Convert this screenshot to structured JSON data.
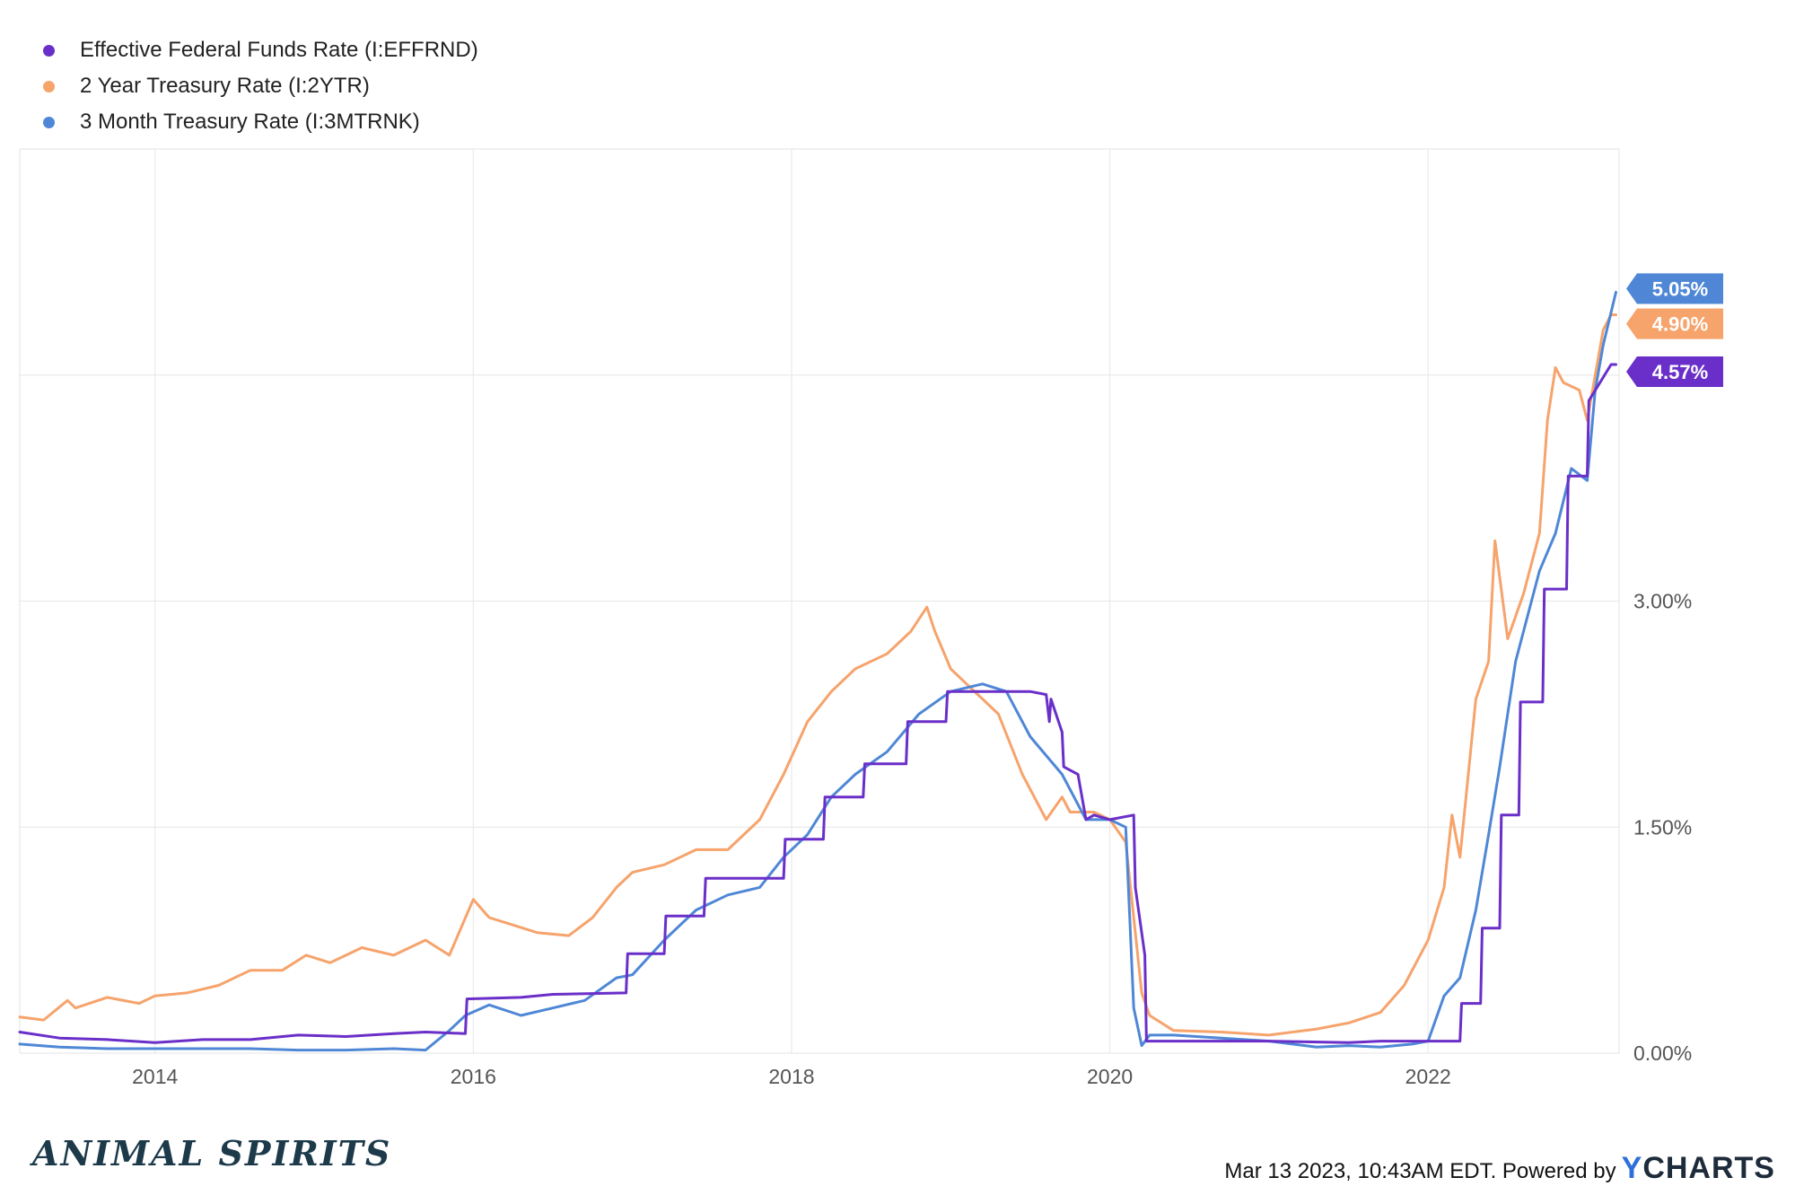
{
  "legend": [
    {
      "label": "Effective Federal Funds Rate (I:EFFRND)",
      "color": "#6a2fc8"
    },
    {
      "label": "2 Year Treasury Rate (I:2YTR)",
      "color": "#f6a36c"
    },
    {
      "label": "3 Month Treasury Rate (I:3MTRNK)",
      "color": "#4f87d6"
    }
  ],
  "footer": {
    "brand": "ANIMAL SPIRITS",
    "timestamp": "Mar 13 2023, 10:43AM EDT. Powered by",
    "logo_y": "Y",
    "logo_rest": "CHARTS"
  },
  "chart_data": {
    "type": "line",
    "x_ticks": [
      "2014",
      "2016",
      "2018",
      "2020",
      "2022"
    ],
    "y_ticks": [
      "0.00%",
      "1.50%",
      "3.00%"
    ],
    "y_tick_values": [
      0,
      1.5,
      3.0
    ],
    "xlim": [
      2013.15,
      2023.2
    ],
    "ylim": [
      0,
      6.0
    ],
    "grid": true,
    "legend_position": "top-left",
    "end_labels": [
      {
        "series": "3 Month Treasury Rate (I:3MTRNK)",
        "text": "5.05%",
        "value": 5.05,
        "color": "#4f87d6"
      },
      {
        "series": "2 Year Treasury Rate (I:2YTR)",
        "text": "4.90%",
        "value": 4.9,
        "color": "#f6a36c"
      },
      {
        "series": "Effective Federal Funds Rate (I:EFFRND)",
        "text": "4.57%",
        "value": 4.57,
        "color": "#6a2fc8"
      }
    ],
    "series": [
      {
        "name": "Effective Federal Funds Rate (I:EFFRND)",
        "color": "#6a2fc8",
        "x": [
          2013.15,
          2013.4,
          2013.7,
          2014.0,
          2014.3,
          2014.6,
          2014.9,
          2015.2,
          2015.5,
          2015.7,
          2015.95,
          2015.96,
          2016.3,
          2016.5,
          2016.96,
          2016.97,
          2017.2,
          2017.21,
          2017.45,
          2017.46,
          2017.95,
          2017.96,
          2018.2,
          2018.21,
          2018.45,
          2018.46,
          2018.72,
          2018.73,
          2018.97,
          2018.98,
          2019.25,
          2019.5,
          2019.6,
          2019.62,
          2019.63,
          2019.7,
          2019.71,
          2019.8,
          2019.85,
          2019.9,
          2020.0,
          2020.15,
          2020.16,
          2020.22,
          2020.23,
          2020.5,
          2021.0,
          2021.5,
          2021.7,
          2021.9,
          2022.2,
          2022.21,
          2022.33,
          2022.34,
          2022.45,
          2022.46,
          2022.57,
          2022.58,
          2022.72,
          2022.73,
          2022.87,
          2022.88,
          2023.0,
          2023.01,
          2023.15,
          2023.18
        ],
        "y": [
          0.14,
          0.1,
          0.09,
          0.07,
          0.09,
          0.09,
          0.12,
          0.11,
          0.13,
          0.14,
          0.13,
          0.36,
          0.37,
          0.39,
          0.4,
          0.66,
          0.66,
          0.91,
          0.91,
          1.16,
          1.16,
          1.42,
          1.42,
          1.7,
          1.7,
          1.92,
          1.92,
          2.2,
          2.2,
          2.4,
          2.4,
          2.4,
          2.38,
          2.2,
          2.35,
          2.13,
          1.9,
          1.85,
          1.55,
          1.58,
          1.55,
          1.58,
          1.1,
          0.65,
          0.08,
          0.08,
          0.08,
          0.07,
          0.08,
          0.08,
          0.08,
          0.33,
          0.33,
          0.83,
          0.83,
          1.58,
          1.58,
          2.33,
          2.33,
          3.08,
          3.08,
          3.83,
          3.83,
          4.33,
          4.57,
          4.57
        ]
      },
      {
        "name": "2 Year Treasury Rate (I:2YTR)",
        "color": "#f6a36c",
        "x": [
          2013.15,
          2013.3,
          2013.45,
          2013.5,
          2013.7,
          2013.9,
          2014.0,
          2014.2,
          2014.4,
          2014.6,
          2014.8,
          2014.95,
          2015.1,
          2015.3,
          2015.5,
          2015.7,
          2015.85,
          2016.0,
          2016.1,
          2016.25,
          2016.4,
          2016.6,
          2016.75,
          2016.9,
          2017.0,
          2017.2,
          2017.4,
          2017.6,
          2017.8,
          2017.95,
          2018.1,
          2018.25,
          2018.4,
          2018.6,
          2018.75,
          2018.85,
          2018.9,
          2019.0,
          2019.1,
          2019.3,
          2019.45,
          2019.6,
          2019.7,
          2019.75,
          2019.9,
          2020.0,
          2020.1,
          2020.15,
          2020.2,
          2020.25,
          2020.4,
          2020.7,
          2021.0,
          2021.3,
          2021.5,
          2021.7,
          2021.85,
          2022.0,
          2022.1,
          2022.15,
          2022.2,
          2022.3,
          2022.38,
          2022.42,
          2022.5,
          2022.6,
          2022.7,
          2022.75,
          2022.8,
          2022.85,
          2022.95,
          2023.0,
          2023.05,
          2023.1,
          2023.15,
          2023.18
        ],
        "y": [
          0.24,
          0.22,
          0.35,
          0.3,
          0.37,
          0.33,
          0.38,
          0.4,
          0.45,
          0.55,
          0.55,
          0.65,
          0.6,
          0.7,
          0.65,
          0.75,
          0.65,
          1.02,
          0.9,
          0.85,
          0.8,
          0.78,
          0.9,
          1.1,
          1.2,
          1.25,
          1.35,
          1.35,
          1.55,
          1.85,
          2.2,
          2.4,
          2.55,
          2.65,
          2.8,
          2.96,
          2.8,
          2.55,
          2.45,
          2.25,
          1.85,
          1.55,
          1.7,
          1.6,
          1.6,
          1.55,
          1.4,
          0.9,
          0.4,
          0.25,
          0.15,
          0.14,
          0.12,
          0.16,
          0.2,
          0.27,
          0.45,
          0.75,
          1.1,
          1.58,
          1.3,
          2.35,
          2.6,
          3.4,
          2.75,
          3.05,
          3.45,
          4.2,
          4.55,
          4.45,
          4.4,
          4.2,
          4.5,
          4.8,
          4.9,
          4.9
        ]
      },
      {
        "name": "3 Month Treasury Rate (I:3MTRNK)",
        "color": "#4f87d6",
        "x": [
          2013.15,
          2013.4,
          2013.7,
          2014.0,
          2014.3,
          2014.6,
          2014.9,
          2015.2,
          2015.5,
          2015.7,
          2015.85,
          2015.95,
          2016.1,
          2016.3,
          2016.5,
          2016.7,
          2016.9,
          2017.0,
          2017.2,
          2017.4,
          2017.6,
          2017.8,
          2017.95,
          2018.1,
          2018.25,
          2018.4,
          2018.6,
          2018.8,
          2019.0,
          2019.2,
          2019.35,
          2019.5,
          2019.7,
          2019.85,
          2020.0,
          2020.1,
          2020.15,
          2020.2,
          2020.25,
          2020.4,
          2020.7,
          2021.0,
          2021.3,
          2021.5,
          2021.7,
          2021.9,
          2022.0,
          2022.1,
          2022.2,
          2022.3,
          2022.38,
          2022.45,
          2022.55,
          2022.7,
          2022.8,
          2022.9,
          2023.0,
          2023.05,
          2023.1,
          2023.18
        ],
        "y": [
          0.06,
          0.04,
          0.03,
          0.03,
          0.03,
          0.03,
          0.02,
          0.02,
          0.03,
          0.02,
          0.15,
          0.25,
          0.32,
          0.25,
          0.3,
          0.35,
          0.5,
          0.52,
          0.75,
          0.95,
          1.05,
          1.1,
          1.3,
          1.45,
          1.7,
          1.85,
          2.0,
          2.25,
          2.4,
          2.45,
          2.4,
          2.1,
          1.85,
          1.55,
          1.55,
          1.5,
          0.3,
          0.05,
          0.12,
          0.12,
          0.1,
          0.08,
          0.04,
          0.05,
          0.04,
          0.06,
          0.08,
          0.38,
          0.5,
          0.95,
          1.45,
          1.9,
          2.6,
          3.2,
          3.45,
          3.88,
          3.8,
          4.4,
          4.7,
          5.05
        ]
      }
    ]
  }
}
